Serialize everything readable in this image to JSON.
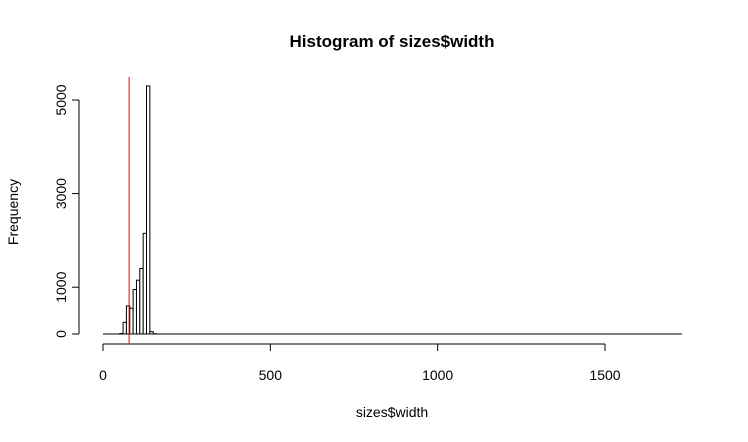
{
  "chart_data": {
    "type": "bar",
    "title": "Histogram of sizes$width",
    "xlabel": "sizes$width",
    "ylabel": "Frequency",
    "xlim": [
      0,
      1750
    ],
    "ylim": [
      0,
      5300
    ],
    "x_ticks": [
      0,
      500,
      1000,
      1500
    ],
    "y_ticks": [
      0,
      1000,
      3000,
      5000
    ],
    "bin_width": 10,
    "bins": [
      {
        "start": 0,
        "end": 10,
        "count": 0
      },
      {
        "start": 10,
        "end": 20,
        "count": 0
      },
      {
        "start": 20,
        "end": 30,
        "count": 0
      },
      {
        "start": 30,
        "end": 40,
        "count": 0
      },
      {
        "start": 40,
        "end": 50,
        "count": 0
      },
      {
        "start": 50,
        "end": 60,
        "count": 10
      },
      {
        "start": 60,
        "end": 70,
        "count": 250
      },
      {
        "start": 70,
        "end": 80,
        "count": 600
      },
      {
        "start": 80,
        "end": 90,
        "count": 550
      },
      {
        "start": 90,
        "end": 100,
        "count": 950
      },
      {
        "start": 100,
        "end": 110,
        "count": 1150
      },
      {
        "start": 110,
        "end": 120,
        "count": 1400
      },
      {
        "start": 120,
        "end": 130,
        "count": 2150
      },
      {
        "start": 130,
        "end": 140,
        "count": 5300
      },
      {
        "start": 140,
        "end": 150,
        "count": 50
      },
      {
        "start": 150,
        "end": 160,
        "count": 5
      }
    ],
    "reference_line": {
      "x": 78,
      "color": "#ff0000"
    },
    "tail_x_max": 1730
  }
}
